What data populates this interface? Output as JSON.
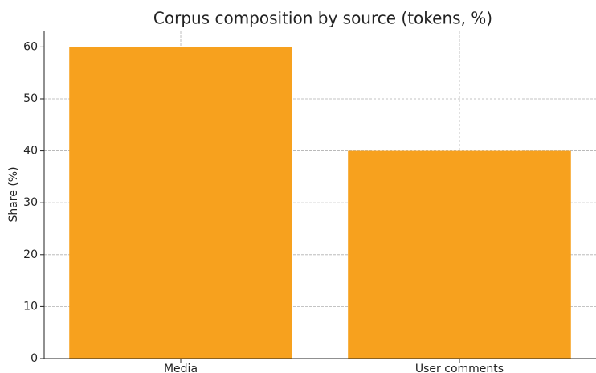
{
  "chart_data": {
    "type": "bar",
    "title": "Corpus composition by source (tokens, %)",
    "ylabel": "Share (%)",
    "categories": [
      "Media",
      "User comments"
    ],
    "values": [
      60,
      40
    ],
    "color": "#f7a11e",
    "ylim": [
      0,
      63
    ],
    "yticks": [
      0,
      10,
      20,
      30,
      40,
      50,
      60
    ],
    "grid": true
  }
}
